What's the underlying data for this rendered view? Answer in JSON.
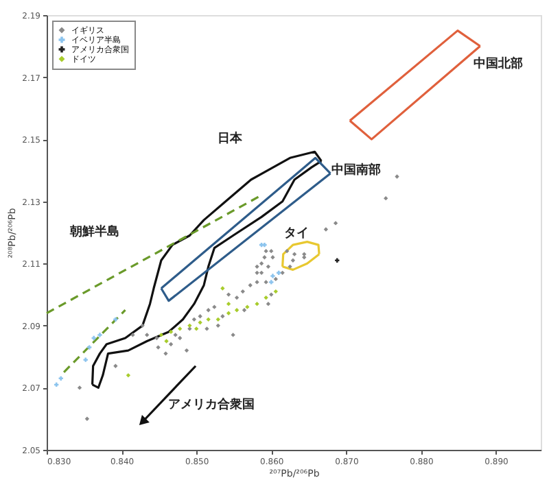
{
  "chart_data": {
    "type": "scatter",
    "xlabel": "²⁰⁷Pb/²⁰⁶Pb",
    "ylabel": "²⁰⁸Pb/²⁰⁶Pb",
    "xlim": [
      0.83,
      0.896
    ],
    "ylim": [
      2.05,
      2.19
    ],
    "xticks": [
      {
        "value": 0.83,
        "label": "0.830"
      },
      {
        "value": 0.84,
        "label": "0.840"
      },
      {
        "value": 0.85,
        "label": "0.850"
      },
      {
        "value": 0.86,
        "label": "0.860"
      },
      {
        "value": 0.87,
        "label": "0.870"
      },
      {
        "value": 0.88,
        "label": "0.880"
      },
      {
        "value": 0.89,
        "label": "0.890"
      }
    ],
    "yticks": [
      2.05,
      2.07,
      2.09,
      2.11,
      2.13,
      2.15,
      2.17,
      2.19
    ],
    "grid": false,
    "legend": "top left",
    "series": [
      {
        "name": "イギリス",
        "marker": "diamond",
        "color": "#8a8a8a",
        "x": [
          0.8434,
          0.8449,
          0.8466,
          0.8478,
          0.8491,
          0.8497,
          0.8505,
          0.8516,
          0.8524,
          0.8535,
          0.8543,
          0.8554,
          0.8562,
          0.8572,
          0.8581,
          0.8587,
          0.8596,
          0.8591,
          0.8581,
          0.86,
          0.8487,
          0.8459,
          0.8472,
          0.8447,
          0.8415,
          0.8428,
          0.8344,
          0.8354,
          0.8392,
          0.8549,
          0.8514,
          0.8564,
          0.8529,
          0.8621,
          0.8629,
          0.8625,
          0.8615,
          0.8606,
          0.8593,
          0.8581,
          0.8587,
          0.8631,
          0.8644,
          0.8596,
          0.86,
          0.8768,
          0.8753,
          0.8686,
          0.8673,
          0.8644,
          0.8602,
          0.8593
        ],
        "values": [
          2.087,
          2.083,
          2.084,
          2.086,
          2.089,
          2.092,
          2.093,
          2.095,
          2.096,
          2.093,
          2.1,
          2.099,
          2.101,
          2.103,
          2.104,
          2.107,
          2.109,
          2.112,
          2.109,
          2.114,
          2.082,
          2.081,
          2.087,
          2.086,
          2.087,
          2.09,
          2.07,
          2.06,
          2.077,
          2.087,
          2.089,
          2.095,
          2.09,
          2.114,
          2.111,
          2.109,
          2.107,
          2.105,
          2.104,
          2.107,
          2.11,
          2.113,
          2.113,
          2.097,
          2.1,
          2.138,
          2.131,
          2.123,
          2.121,
          2.112,
          2.112,
          2.114
        ]
      },
      {
        "name": "イベリア半島",
        "marker": "cross",
        "color": "#8cc4ee",
        "x": [
          0.8313,
          0.8319,
          0.8352,
          0.8357,
          0.8363,
          0.8371,
          0.8392,
          0.8587,
          0.8591,
          0.8602,
          0.861,
          0.86
        ],
        "values": [
          2.071,
          2.073,
          2.079,
          2.083,
          2.086,
          2.087,
          2.092,
          2.116,
          2.116,
          2.106,
          2.107,
          2.104
        ]
      },
      {
        "name": "アメリカ合衆国",
        "marker": "cross",
        "color": "#222222",
        "x": [
          0.8688
        ],
        "values": [
          2.111
        ]
      },
      {
        "name": "ドイツ",
        "marker": "diamond",
        "color": "#a8cc2c",
        "x": [
          0.8453,
          0.8466,
          0.8478,
          0.8491,
          0.8505,
          0.8516,
          0.8529,
          0.8543,
          0.8554,
          0.8568,
          0.8581,
          0.8593,
          0.8606,
          0.8535,
          0.8543,
          0.8409,
          0.846,
          0.85
        ],
        "values": [
          2.087,
          2.088,
          2.089,
          2.09,
          2.091,
          2.092,
          2.092,
          2.094,
          2.095,
          2.096,
          2.097,
          2.099,
          2.101,
          2.102,
          2.097,
          2.074,
          2.085,
          2.089
        ]
      },
      {
        "name": "日本",
        "type": "line",
        "color": "#111111",
        "x": [
          0.8361,
          0.8362,
          0.8371,
          0.838,
          0.8405,
          0.8428,
          0.8438,
          0.8443,
          0.8453,
          0.8468,
          0.8491,
          0.851,
          0.8539,
          0.8573,
          0.8625,
          0.8658,
          0.8667
        ],
        "values": [
          2.071,
          2.077,
          2.081,
          2.084,
          2.086,
          2.09,
          2.097,
          2.102,
          2.111,
          2.116,
          2.119,
          2.124,
          2.13,
          2.137,
          2.144,
          2.146,
          2.143
        ]
      },
      {
        "type": "line",
        "color": "#111111",
        "x": [
          0.8361,
          0.8369,
          0.8375,
          0.8382,
          0.8409,
          0.8434,
          0.8463,
          0.8482,
          0.8497,
          0.851,
          0.8516,
          0.8524,
          0.8549,
          0.8587,
          0.8615,
          0.8631,
          0.8654,
          0.8667
        ],
        "values": [
          2.071,
          2.07,
          2.074,
          2.081,
          2.082,
          2.085,
          2.088,
          2.092,
          2.097,
          2.103,
          2.109,
          2.115,
          2.119,
          2.125,
          2.13,
          2.137,
          2.141,
          2.143
        ]
      },
      {
        "name": "中国南部",
        "type": "line",
        "color": "#2e5c8a",
        "x": [
          0.8453,
          0.8659,
          0.8679
        ],
        "values": [
          2.102,
          2.144,
          2.139
        ]
      },
      {
        "type": "line",
        "color": "#2e5c8a",
        "x": [
          0.8453,
          0.8463,
          0.8679
        ],
        "values": [
          2.102,
          2.098,
          2.139
        ]
      },
      {
        "name": "中国北部",
        "type": "line",
        "color": "#e0603c",
        "x": [
          0.8705,
          0.8849,
          0.8879
        ],
        "values": [
          2.156,
          2.185,
          2.18
        ]
      },
      {
        "type": "line",
        "color": "#e0603c",
        "x": [
          0.8705,
          0.8734,
          0.8879
        ],
        "values": [
          2.156,
          2.15,
          2.18
        ]
      },
      {
        "name": "タイ",
        "type": "line",
        "color": "#e8c830",
        "x": [
          0.8615,
          0.8616,
          0.8629,
          0.8648,
          0.8663,
          0.8664
        ],
        "values": [
          2.109,
          2.113,
          2.116,
          2.117,
          2.116,
          2.113
        ]
      },
      {
        "type": "line",
        "color": "#e8c830",
        "x": [
          0.8615,
          0.8629,
          0.8648,
          0.8664
        ],
        "values": [
          2.109,
          2.108,
          2.11,
          2.113
        ]
      },
      {
        "name": "朝鮮半島",
        "type": "line",
        "line_style": "dashed",
        "color": "#6a9a2a",
        "x": [
          0.83,
          0.8587,
          null,
          0.8323,
          0.8405
        ],
        "values": [
          2.094,
          2.132,
          null,
          2.075,
          2.095
        ]
      },
      {
        "name": "アメリカ合衆国",
        "type": "line",
        "color": "#111111",
        "x": [
          0.8428,
          0.8499
        ],
        "values": [
          2.059,
          2.077
        ]
      }
    ]
  }
}
